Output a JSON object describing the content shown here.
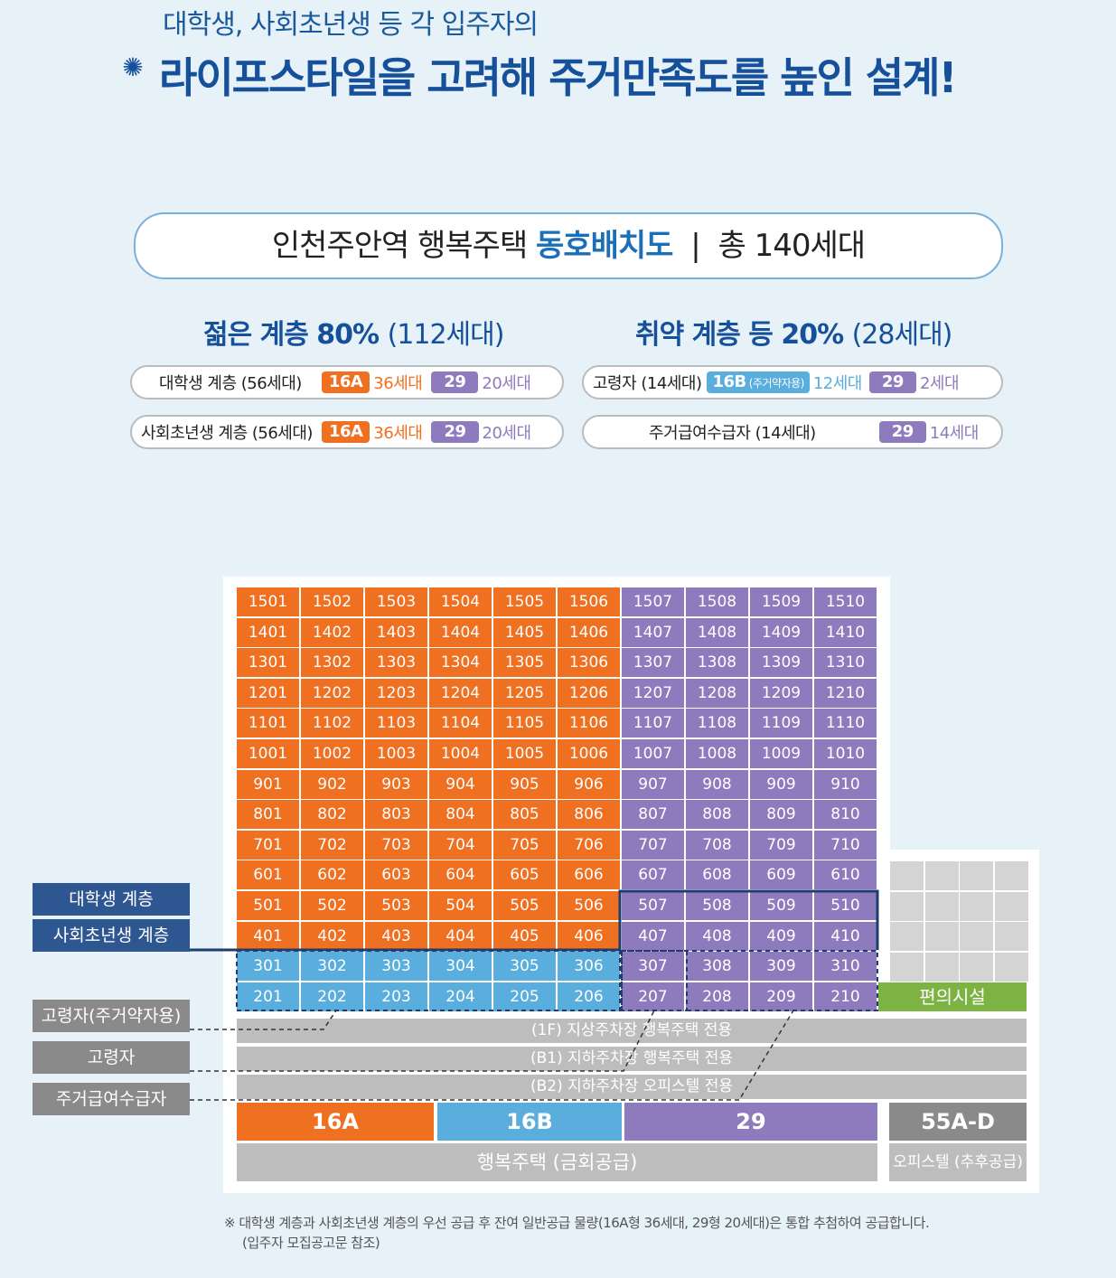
{
  "header": {
    "line1": "대학생, 사회초년생 등 각 입주자의",
    "line2": "라이프스타일을 고려해 주거만족도를 높인 설계!"
  },
  "title": {
    "main": "인천주안역 행복주택",
    "highlight": "동호배치도",
    "separator": "|",
    "total": "총 140세대"
  },
  "groups": {
    "young": {
      "heading_bold": "젊은 계층 80%",
      "heading_thin": "(112세대)",
      "rows": [
        {
          "label": "대학생 계층 (56세대)",
          "tag1": "16A",
          "count1": "36세대",
          "tag2": "29",
          "count2": "20세대"
        },
        {
          "label": "사회초년생 계층 (56세대)",
          "tag1": "16A",
          "count1": "36세대",
          "tag2": "29",
          "count2": "20세대"
        }
      ]
    },
    "vulnerable": {
      "heading_bold": "취약 계층 등 20%",
      "heading_thin": "(28세대)",
      "row1": {
        "label": "고령자 (14세대)",
        "tag1": "16B",
        "tag1_sub": "(주거약자용)",
        "count1": "12세대",
        "tag2": "29",
        "count2": "2세대"
      },
      "row2": {
        "label": "주거급여수급자 (14세대)",
        "tag": "29",
        "count": "14세대"
      }
    }
  },
  "colors": {
    "orange": "#f07022",
    "purple": "#8e7bbd",
    "blue": "#5aaede",
    "green": "#7cb342",
    "navy": "#2e5791"
  },
  "units": {
    "floors": [
      15,
      14,
      13,
      12,
      11,
      10,
      9,
      8,
      7,
      6,
      5,
      4,
      3,
      2
    ],
    "lines": 10
  },
  "annex_label": "편의시설",
  "bars": [
    "(1F) 지상주차장 행복주택 전용",
    "(B1) 지하주차장 행복주택 전용",
    "(B2) 지하주차장 오피스텔 전용"
  ],
  "legend": {
    "t16a": "16A",
    "t16b": "16B",
    "t29": "29",
    "t55": "55A-D",
    "happy_housing": "행복주택 (금회공급)",
    "officetel": "오피스텔 (추후공급)"
  },
  "side_labels": {
    "student": "대학생 계층",
    "youngworker": "사회초년생 계층",
    "elderly_weak": "고령자(주거약자용)",
    "elderly": "고령자",
    "benefit": "주거급여수급자"
  },
  "footnote": {
    "line1": "※ 대학생 계층과 사회초년생 계층의 우선 공급 후 잔여 일반공급 물량(16A형 36세대, 29형 20세대)은 통합 추첨하여 공급합니다.",
    "line2": "(입주자 모집공고문 참조)"
  }
}
